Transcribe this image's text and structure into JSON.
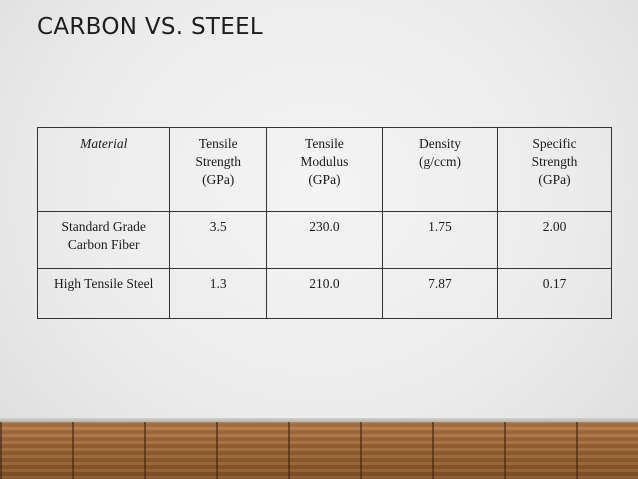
{
  "slide": {
    "title": "CARBON VS. STEEL"
  },
  "table": {
    "headers": [
      [
        "Material"
      ],
      [
        "Tensile",
        "Strength",
        "(GPa)"
      ],
      [
        "Tensile",
        "Modulus",
        "(GPa)"
      ],
      [
        "Density",
        "(g/ccm)"
      ],
      [
        "Specific",
        "Strength",
        "(GPa)"
      ]
    ],
    "rows": [
      {
        "material": [
          "Standard Grade",
          "Carbon Fiber"
        ],
        "tensile_strength": "3.5",
        "tensile_modulus": "230.0",
        "density": "1.75",
        "specific_strength": "2.00"
      },
      {
        "material": [
          "High Tensile Steel"
        ],
        "tensile_strength": "1.3",
        "tensile_modulus": "210.0",
        "density": "7.87",
        "specific_strength": "0.17"
      }
    ]
  }
}
